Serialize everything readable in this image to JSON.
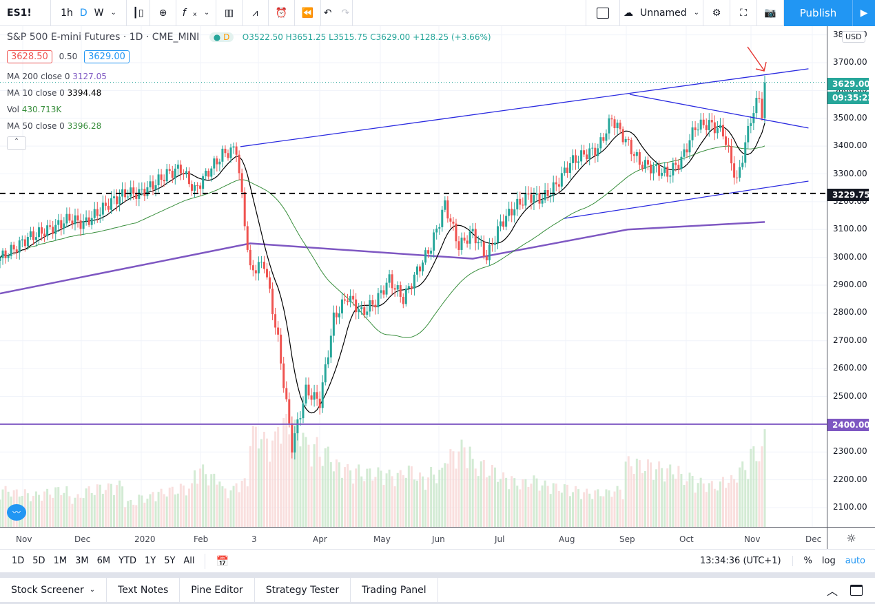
{
  "toolbar": {
    "symbol": "ES1!",
    "intervals": [
      "1h",
      "D",
      "W"
    ],
    "active_interval": "D",
    "layout_name": "Unnamed",
    "publish": "Publish"
  },
  "legend": {
    "title": "S&P 500 E-mini Futures · 1D · CME_MINI",
    "status": "D",
    "o": "O3522.50",
    "h": "H3651.25",
    "l": "L3515.75",
    "c": "C3629.00",
    "change": "+128.25 (+3.66%)",
    "bid": "3628.50",
    "spread": "0.50",
    "ask": "3629.00",
    "ma200": {
      "label": "MA 200 close 0",
      "value": "3127.05"
    },
    "ma10": {
      "label": "MA 10 close 0",
      "value": "3394.48"
    },
    "vol": {
      "label": "Vol",
      "value": "430.713K"
    },
    "ma50": {
      "label": "MA 50 close 0",
      "value": "3396.28"
    }
  },
  "price_axis": {
    "currency": "USD",
    "labels": [
      "3800.00",
      "3700.00",
      "3600.00",
      "3500.00",
      "3400.00",
      "3300.00",
      "3200.00",
      "3100.00",
      "3000.00",
      "2900.00",
      "2800.00",
      "2700.00",
      "2600.00",
      "2500.00",
      "2400.00",
      "2300.00",
      "2200.00",
      "2100.00"
    ],
    "last_price": "3629.00",
    "countdown": "09:35:22",
    "hline1": "3229.75",
    "hline2": "2400.00"
  },
  "time_axis": {
    "labels": [
      "Nov",
      "Dec",
      "2020",
      "Feb",
      "3",
      "Apr",
      "May",
      "Jun",
      "Jul",
      "Aug",
      "Sep",
      "Oct",
      "Nov",
      "Dec"
    ]
  },
  "range_bar": {
    "ranges": [
      "1D",
      "5D",
      "1M",
      "3M",
      "6M",
      "YTD",
      "1Y",
      "5Y",
      "All"
    ],
    "clock": "13:34:36 (UTC+1)",
    "pct": "%",
    "log": "log",
    "auto": "auto"
  },
  "bottom_tabs": [
    "Stock Screener",
    "Text Notes",
    "Pine Editor",
    "Strategy Tester",
    "Trading Panel"
  ],
  "colors": {
    "up": "#26a69a",
    "down": "#ef5350",
    "ma10": "#000000",
    "ma50": "#388e3c",
    "ma200": "#7e57c2",
    "trendline": "#2a2ae0",
    "accent": "#2196f3"
  },
  "chart_data": {
    "type": "candlestick",
    "ylim": [
      2050,
      3800
    ],
    "start_week": "2019-10-21",
    "end_week": "2020-11-09",
    "weekly_closes": [
      2997,
      3030,
      3070,
      3090,
      3110,
      3140,
      3120,
      3160,
      3200,
      3230,
      3230,
      3260,
      3300,
      3320,
      3240,
      3310,
      3370,
      3390,
      2950,
      2980,
      2700,
      2320,
      2520,
      2480,
      2780,
      2860,
      2800,
      2840,
      2920,
      2850,
      2950,
      3040,
      3190,
      3040,
      3090,
      3000,
      3120,
      3180,
      3220,
      3210,
      3260,
      3340,
      3370,
      3390,
      3500,
      3420,
      3340,
      3320,
      3300,
      3350,
      3470,
      3480,
      3450,
      3270,
      3500,
      3629
    ],
    "weekly_volume_k": [
      150,
      140,
      130,
      140,
      150,
      120,
      150,
      160,
      170,
      100,
      120,
      140,
      150,
      160,
      230,
      200,
      150,
      180,
      380,
      350,
      420,
      400,
      330,
      300,
      250,
      230,
      220,
      220,
      210,
      230,
      200,
      220,
      290,
      320,
      250,
      230,
      200,
      180,
      190,
      170,
      160,
      150,
      140,
      140,
      150,
      260,
      250,
      240,
      230,
      200,
      180,
      170,
      190,
      240,
      300,
      430
    ],
    "ma200": [
      [
        "2019-10-21",
        2870
      ],
      [
        "2020-02-24",
        3050
      ],
      [
        "2020-06-15",
        2995
      ],
      [
        "2020-09-01",
        3100
      ],
      [
        "2020-11-09",
        3127
      ]
    ],
    "drawings": {
      "upper_line": [
        [
          "2020-02-19",
          3398
        ],
        [
          "2020-12-01",
          3678
        ]
      ],
      "falling_line": [
        [
          "2020-09-02",
          3586
        ],
        [
          "2020-12-01",
          3465
        ]
      ],
      "lower_line": [
        [
          "2020-07-31",
          3140
        ],
        [
          "2020-12-01",
          3274
        ]
      ],
      "hline_dashed": 3229.75,
      "hline_solid": 2400
    }
  }
}
